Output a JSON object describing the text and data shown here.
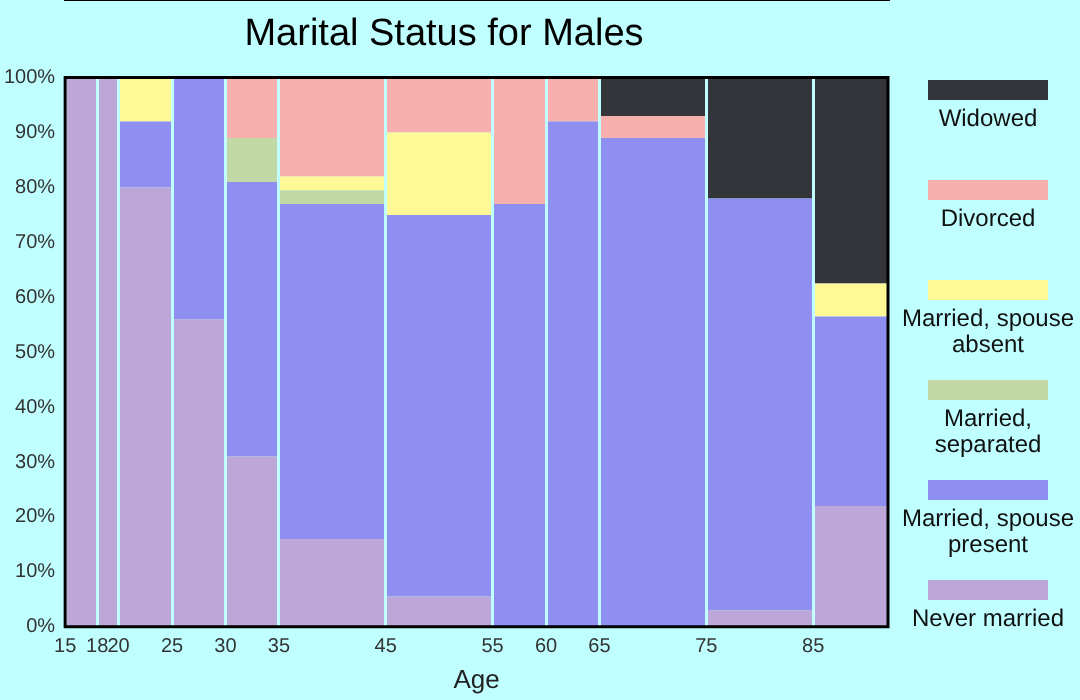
{
  "chart_data": {
    "type": "bar",
    "title": "Marital Status for Males",
    "xlabel": "Age",
    "stacked": true,
    "x": [
      16.5,
      19,
      22.5,
      27.5,
      32.5,
      40,
      50,
      57.5,
      62.5,
      70,
      80,
      88.5
    ],
    "xlim": [
      15,
      92
    ],
    "xticks": [
      15,
      18,
      20,
      25,
      30,
      35,
      45,
      55,
      60,
      65,
      75,
      85
    ],
    "ylim": [
      0,
      100
    ],
    "yticks": [
      {
        "value": 0,
        "label": "0%"
      },
      {
        "value": 10,
        "label": "10%"
      },
      {
        "value": 20,
        "label": "20%"
      },
      {
        "value": 30,
        "label": "30%"
      },
      {
        "value": 40,
        "label": "40%"
      },
      {
        "value": 50,
        "label": "50%"
      },
      {
        "value": 60,
        "label": "60%"
      },
      {
        "value": 70,
        "label": "70%"
      },
      {
        "value": 80,
        "label": "80%"
      },
      {
        "value": 90,
        "label": "90%"
      },
      {
        "value": 100,
        "label": "100%"
      }
    ],
    "grid": "x",
    "legend": "right",
    "series": [
      {
        "name": "Never married",
        "color": "#bda7d8",
        "values": [
          100,
          100,
          80,
          56,
          31,
          16,
          5.5,
          0,
          0,
          0,
          3,
          22
        ]
      },
      {
        "name": "Married, spouse present",
        "color": "#8f8ff2",
        "values": [
          0,
          0,
          12,
          44,
          50,
          61,
          69.5,
          77,
          92,
          89,
          75,
          34.5
        ]
      },
      {
        "name": "Married, separated",
        "color": "#c2d9a6",
        "values": [
          0,
          0,
          0,
          0,
          8,
          2.5,
          0,
          0,
          0,
          0,
          0,
          0
        ]
      },
      {
        "name": "Married, spouse absent",
        "color": "#fef896",
        "values": [
          0,
          0,
          8,
          0,
          0,
          2.5,
          15,
          0,
          0,
          0,
          0,
          6
        ]
      },
      {
        "name": "Divorced",
        "color": "#f8b0ae",
        "values": [
          0,
          0,
          0,
          0,
          11,
          18,
          10,
          23,
          8,
          4,
          0,
          0
        ]
      },
      {
        "name": "Widowed",
        "color": "#34353b",
        "values": [
          0,
          0,
          0,
          0,
          0,
          0,
          0,
          0,
          0,
          7,
          22,
          37.5
        ]
      }
    ]
  }
}
